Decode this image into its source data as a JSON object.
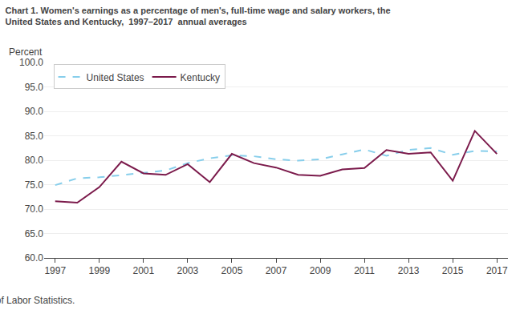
{
  "chart_data": {
    "type": "line",
    "title": "Chart 1. Women's earnings as a percentage of men's, full-time wage and salary workers, the",
    "subtitle": "United States and Kentucky,  1997–2017  annual averages",
    "ylabel": "Percent",
    "annotations": [
      "Source:  U.S. Bureau of Labor Statistics."
    ],
    "x": [
      1997,
      1998,
      1999,
      2000,
      2001,
      2002,
      2003,
      2004,
      2005,
      2006,
      2007,
      2008,
      2009,
      2010,
      2011,
      2012,
      2013,
      2014,
      2015,
      2016,
      2017
    ],
    "series": [
      {
        "name": "United States",
        "color": "#87CEEB",
        "line_style": "dashed",
        "values": [
          74.9,
          76.3,
          76.5,
          76.9,
          77.4,
          77.9,
          79.4,
          80.4,
          81.0,
          80.8,
          80.2,
          79.9,
          80.2,
          81.2,
          82.2,
          80.9,
          82.1,
          82.5,
          81.1,
          81.9,
          81.8
        ]
      },
      {
        "name": "Kentucky",
        "color": "#7B1A4B",
        "line_style": "solid",
        "values": [
          71.6,
          71.3,
          74.5,
          79.7,
          77.3,
          77.0,
          79.2,
          75.5,
          81.3,
          79.4,
          78.5,
          77.0,
          76.8,
          78.1,
          78.4,
          82.1,
          81.3,
          81.6,
          75.8,
          86.0,
          81.3
        ]
      }
    ],
    "xlim": [
      1996.5,
      2017.5
    ],
    "xticks": [
      1997,
      1999,
      2001,
      2003,
      2005,
      2007,
      2009,
      2011,
      2013,
      2015,
      2017
    ],
    "ylim": [
      60.0,
      100.0
    ],
    "yticks": [
      {
        "value": 60.0,
        "label": "60.0"
      },
      {
        "value": 65.0,
        "label": "65.0"
      },
      {
        "value": 70.0,
        "label": "70.0"
      },
      {
        "value": 75.0,
        "label": "75.0"
      },
      {
        "value": 80.0,
        "label": "80.0"
      },
      {
        "value": 85.0,
        "label": "85.0"
      },
      {
        "value": 90.0,
        "label": "90.0"
      },
      {
        "value": 95.0,
        "label": "95.0"
      },
      {
        "value": 100.0,
        "label": "100.0"
      }
    ],
    "grid": true,
    "legend": "upper left"
  }
}
